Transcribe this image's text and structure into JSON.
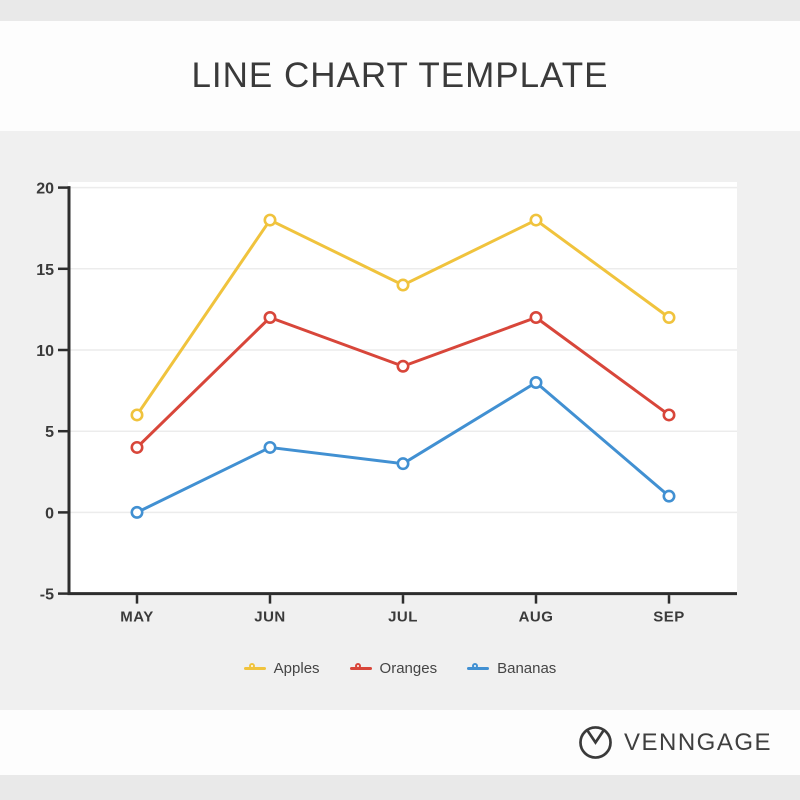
{
  "header": {
    "title": "LINE CHART TEMPLATE"
  },
  "chart_data": {
    "type": "line",
    "categories": [
      "MAY",
      "JUN",
      "JUL",
      "AUG",
      "SEP"
    ],
    "series": [
      {
        "name": "Apples",
        "color": "#f0c33d",
        "values": [
          6,
          18,
          14,
          18,
          12
        ]
      },
      {
        "name": "Oranges",
        "color": "#d8463a",
        "values": [
          4,
          12,
          9,
          12,
          6
        ]
      },
      {
        "name": "Bananas",
        "color": "#4190d2",
        "values": [
          0,
          4,
          3,
          8,
          1
        ]
      }
    ],
    "title": "LINE CHART TEMPLATE",
    "xlabel": "",
    "ylabel": "",
    "ylim": [
      -5,
      20
    ],
    "yticks": [
      20,
      15,
      10,
      5,
      0,
      -5
    ],
    "grid": "horizontal",
    "legend_position": "bottom",
    "marker_style": "open-circle"
  },
  "footer": {
    "brand": "VENNGAGE"
  },
  "colors": {
    "axis": "#2d2d2d",
    "grid": "#ececec",
    "plot_bg": "#ffffff",
    "page_bg": "#f0f0f0",
    "band": "#e9e9e9",
    "text": "#3a3a3a"
  }
}
